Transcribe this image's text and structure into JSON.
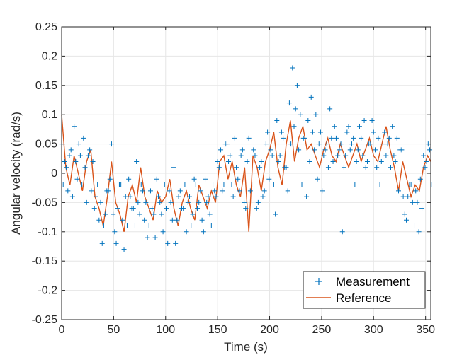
{
  "chart_data": {
    "type": "scatter",
    "title": "",
    "xlabel": "Time (s)",
    "ylabel": "Angular velocity (rad/s)",
    "xlim": [
      0,
      355
    ],
    "ylim": [
      -0.25,
      0.25
    ],
    "xticks": [
      0,
      50,
      100,
      150,
      200,
      250,
      300,
      350
    ],
    "xtick_labels": [
      "0",
      "50",
      "100",
      "150",
      "200",
      "250",
      "300",
      "350"
    ],
    "yticks": [
      -0.25,
      -0.2,
      -0.15,
      -0.1,
      -0.05,
      0,
      0.05,
      0.1,
      0.15,
      0.2,
      0.25
    ],
    "ytick_labels": [
      "-0.25",
      "-0.2",
      "-0.15",
      "-0.1",
      "-0.05",
      "0",
      "0.05",
      "0.1",
      "0.15",
      "0.2",
      "0.25"
    ],
    "grid": true,
    "legend_position": "bottom-right",
    "series": [
      {
        "name": "Measurement",
        "kind": "marker",
        "marker": "+",
        "color": "#0072BD",
        "x": [
          0,
          3,
          6,
          9,
          12,
          15,
          18,
          21,
          24,
          27,
          30,
          33,
          36,
          39,
          42,
          45,
          48,
          51,
          54,
          57,
          60,
          63,
          66,
          69,
          72,
          75,
          78,
          81,
          84,
          87,
          90,
          93,
          96,
          99,
          102,
          105,
          108,
          111,
          114,
          117,
          120,
          123,
          126,
          129,
          132,
          135,
          138,
          141,
          144,
          147,
          150,
          153,
          156,
          159,
          162,
          165,
          168,
          171,
          174,
          177,
          180,
          183,
          186,
          189,
          192,
          195,
          198,
          201,
          204,
          207,
          210,
          213,
          216,
          219,
          222,
          225,
          228,
          231,
          234,
          237,
          240,
          243,
          246,
          249,
          252,
          255,
          258,
          261,
          264,
          267,
          270,
          273,
          276,
          279,
          282,
          285,
          288,
          291,
          294,
          297,
          300,
          303,
          306,
          309,
          312,
          315,
          318,
          321,
          324,
          327,
          330,
          333,
          336,
          339,
          342,
          345,
          348,
          351,
          354
        ],
        "y": [
          0.05,
          0.02,
          -0.03,
          0.04,
          0.08,
          -0.01,
          0.03,
          0.06,
          -0.05,
          0.04,
          0.02,
          -0.04,
          -0.08,
          -0.12,
          -0.07,
          -0.03,
          0.05,
          -0.1,
          -0.06,
          -0.02,
          -0.13,
          -0.09,
          -0.04,
          -0.06,
          0.02,
          -0.07,
          -0.03,
          -0.05,
          -0.09,
          -0.06,
          -0.11,
          -0.04,
          -0.07,
          -0.02,
          -0.12,
          -0.05,
          0.01,
          -0.08,
          -0.03,
          -0.06,
          -0.1,
          -0.04,
          -0.07,
          -0.02,
          -0.05,
          -0.08,
          -0.01,
          -0.04,
          -0.09,
          -0.03,
          0.02,
          0.04,
          -0.02,
          0.05,
          0.03,
          -0.04,
          0.01,
          -0.03,
          0.04,
          -0.06,
          0.06,
          -0.02,
          0.03,
          -0.05,
          0.02,
          -0.03,
          0.07,
          0.04,
          -0.02,
          0.09,
          0.03,
          0.06,
          0.01,
          0.12,
          0.18,
          0.11,
          0.04,
          -0.02,
          0.06,
          0.09,
          0.13,
          0.04,
          -0.01,
          0.07,
          0.03,
          0.05,
          0.11,
          0.02,
          0.06,
          0.04,
          -0.1,
          0.03,
          0.08,
          0.05,
          -0.02,
          0.04,
          0.06,
          0.09,
          0.02,
          0.05,
          0.07,
          0.01,
          -0.02,
          0.05,
          0.03,
          0.06,
          0.08,
          0.02,
          -0.03,
          0.04,
          -0.07,
          -0.04,
          -0.02,
          -0.09,
          -0.05,
          -0.01,
          0.03,
          0.02,
          0.04
        ],
        "y_extra": [
          -0.02,
          0.01,
          0.03,
          -0.04,
          0.02,
          0.05,
          -0.02,
          0.01,
          0.03,
          -0.03,
          -0.06,
          -0.02,
          -0.05,
          -0.09,
          -0.03,
          -0.01,
          -0.07,
          -0.12,
          -0.02,
          -0.08,
          -0.04,
          -0.01,
          -0.06,
          -0.09,
          -0.05,
          -0.02,
          -0.08,
          -0.11,
          -0.03,
          -0.07,
          -0.01,
          -0.05,
          -0.1,
          -0.06,
          -0.03,
          -0.08,
          -0.12,
          -0.04,
          -0.06,
          -0.02,
          -0.05,
          -0.09,
          -0.01,
          -0.06,
          -0.03,
          -0.1,
          -0.05,
          -0.07,
          -0.02,
          -0.04,
          0.01,
          -0.03,
          0.05,
          0.02,
          -0.02,
          0.06,
          -0.01,
          0.03,
          -0.05,
          0.02,
          -0.03,
          0.04,
          -0.06,
          0.01,
          -0.04,
          0.05,
          -0.01,
          0.03,
          -0.07,
          0.02,
          0.07,
          0.01,
          -0.03,
          0.05,
          0.08,
          0.15,
          0.1,
          0.06,
          -0.04,
          0.02,
          0.07,
          0.1,
          0.05,
          -0.03,
          0.04,
          0.01,
          0.06,
          0.08,
          0.03,
          0.05,
          0.01,
          0.07,
          0.04,
          0.06,
          0.02,
          0.08,
          0.03,
          0.01,
          0.05,
          0.09,
          0.04,
          0.06,
          0.02,
          0.07,
          0.05,
          0.01,
          0.03,
          0.06,
          0.04,
          -0.04,
          -0.08,
          -0.02,
          -0.05,
          -0.03,
          -0.1,
          -0.06,
          0.01,
          0.05,
          -0.02
        ]
      },
      {
        "name": "Reference",
        "kind": "line",
        "color": "#D95319",
        "x": [
          0,
          4,
          8,
          12,
          16,
          20,
          24,
          28,
          32,
          36,
          40,
          44,
          48,
          52,
          56,
          60,
          64,
          68,
          72,
          76,
          80,
          84,
          88,
          92,
          96,
          100,
          104,
          108,
          112,
          116,
          120,
          124,
          128,
          132,
          136,
          140,
          144,
          148,
          152,
          156,
          160,
          164,
          168,
          172,
          176,
          180,
          184,
          188,
          192,
          196,
          200,
          204,
          208,
          212,
          216,
          220,
          224,
          228,
          232,
          236,
          240,
          244,
          248,
          252,
          256,
          260,
          264,
          268,
          272,
          276,
          280,
          284,
          288,
          292,
          296,
          300,
          304,
          308,
          312,
          316,
          320,
          324,
          328,
          332,
          336,
          340,
          344,
          348,
          352,
          355
        ],
        "y": [
          0.1,
          0.01,
          -0.02,
          0.03,
          0.0,
          -0.03,
          0.02,
          0.04,
          -0.04,
          -0.06,
          -0.09,
          -0.04,
          0.02,
          -0.05,
          -0.07,
          -0.1,
          -0.04,
          -0.02,
          -0.05,
          0.01,
          -0.04,
          -0.06,
          -0.08,
          -0.03,
          -0.05,
          -0.04,
          -0.01,
          -0.06,
          -0.09,
          -0.05,
          -0.03,
          -0.06,
          -0.08,
          -0.02,
          -0.04,
          -0.06,
          -0.03,
          -0.05,
          0.02,
          0.03,
          -0.01,
          0.02,
          -0.02,
          -0.04,
          0.01,
          -0.1,
          0.03,
          0.01,
          -0.03,
          0.02,
          0.04,
          0.07,
          0.01,
          -0.02,
          0.05,
          0.09,
          0.02,
          0.06,
          0.08,
          0.04,
          0.05,
          0.03,
          0.01,
          0.04,
          0.06,
          0.03,
          0.02,
          0.05,
          0.03,
          0.01,
          0.03,
          0.05,
          0.02,
          0.04,
          0.06,
          0.03,
          0.02,
          0.05,
          0.08,
          0.04,
          0.01,
          -0.03,
          0.02,
          -0.01,
          -0.04,
          -0.02,
          -0.03,
          0.01,
          0.03,
          0.02
        ]
      }
    ]
  }
}
